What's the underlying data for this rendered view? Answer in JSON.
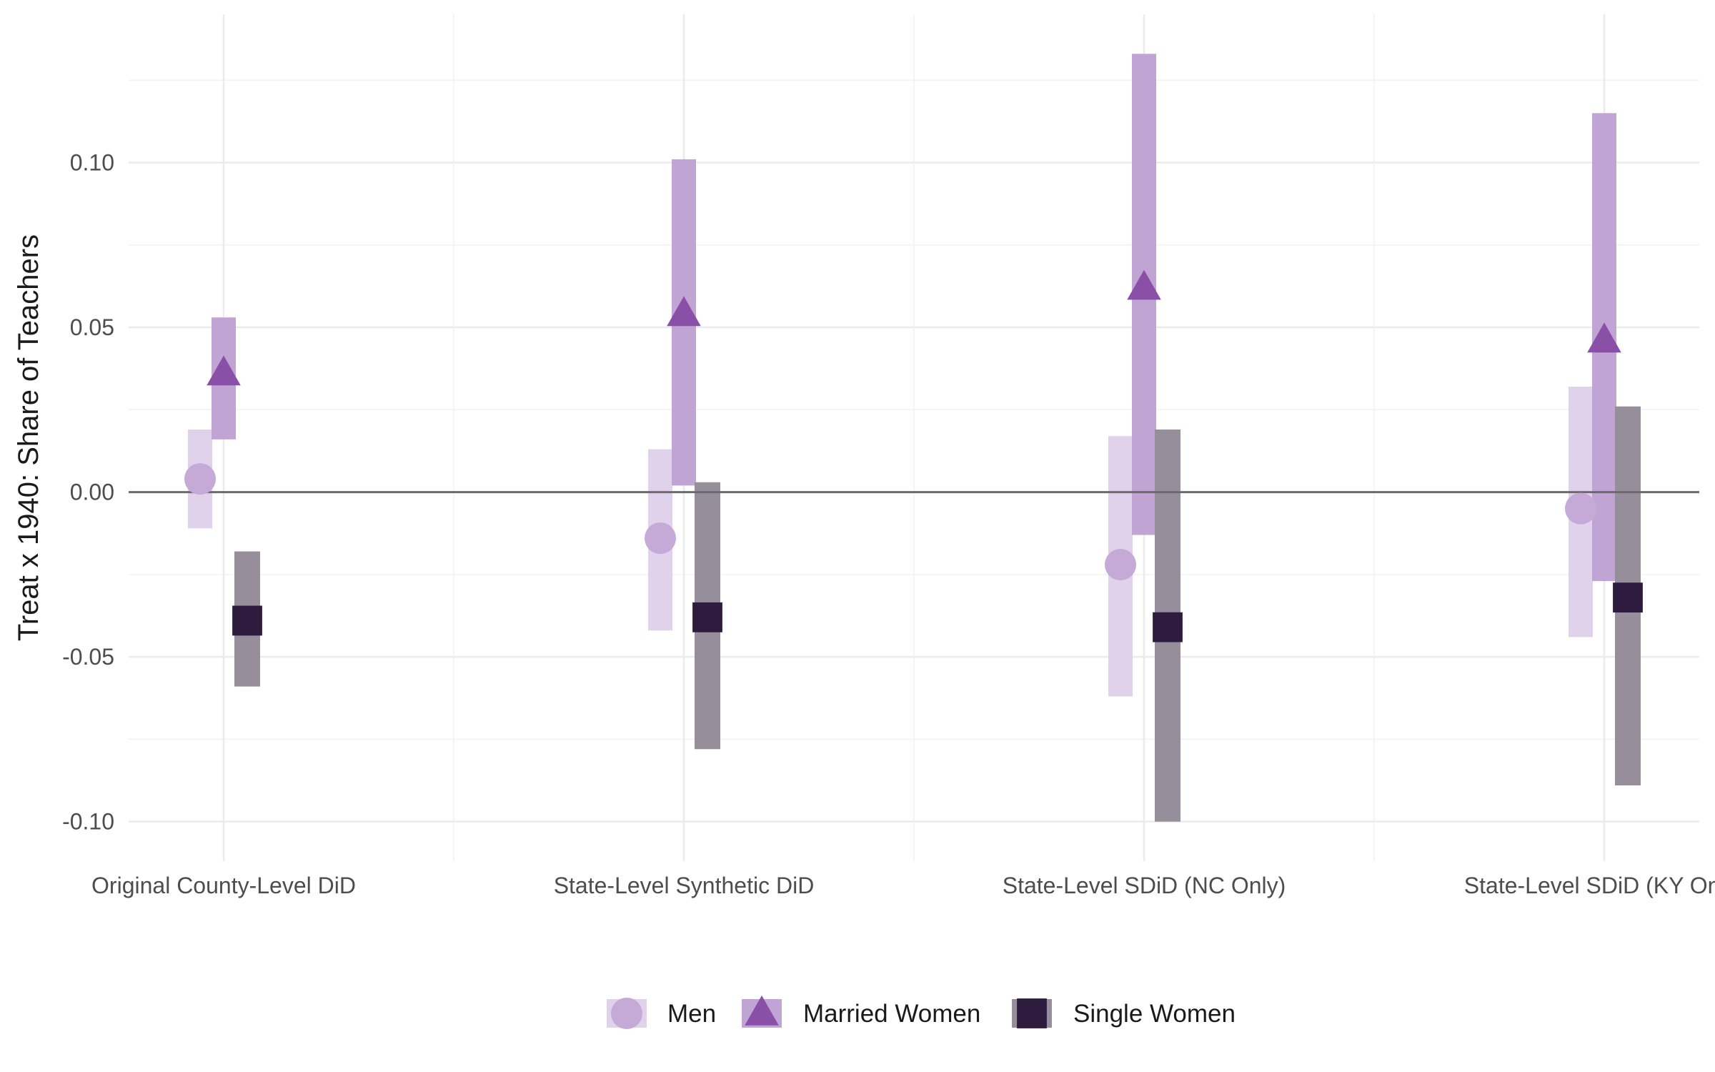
{
  "chart_data": {
    "type": "scatter",
    "subtype": "point-range",
    "ylabel": "Treat x 1940: Share of Teachers",
    "xlabel": "",
    "ylim": [
      -0.112,
      0.145
    ],
    "yticks": [
      -0.1,
      -0.05,
      0.0,
      0.05,
      0.1
    ],
    "ytick_labels": [
      "-0.10",
      "-0.05",
      "0.00",
      "0.05",
      "0.10"
    ],
    "hline": 0,
    "grid": true,
    "legend_position": "bottom",
    "categories": [
      "Original County-Level DiD",
      "State-Level Synthetic DiD",
      "State-Level SDiD (NC Only)",
      "State-Level SDiD (KY Only)"
    ],
    "series": [
      {
        "name": "Men",
        "shape": "circle",
        "color": "#c5aad8",
        "interval_color": "#e1d2ec",
        "estimates": [
          0.004,
          -0.014,
          -0.022,
          -0.005
        ],
        "lower": [
          -0.011,
          -0.042,
          -0.062,
          -0.044
        ],
        "upper": [
          0.019,
          0.013,
          0.017,
          0.032
        ]
      },
      {
        "name": "Married Women",
        "shape": "triangle",
        "color": "#8a4fa6",
        "interval_color": "#c0a4d4",
        "estimates": [
          0.036,
          0.054,
          0.062,
          0.046
        ],
        "lower": [
          0.016,
          0.002,
          -0.013,
          -0.027
        ],
        "upper": [
          0.053,
          0.101,
          0.133,
          0.115
        ]
      },
      {
        "name": "Single Women",
        "shape": "square",
        "color": "#2e1c3e",
        "interval_color": "#978e9c",
        "estimates": [
          -0.039,
          -0.038,
          -0.041,
          -0.032
        ],
        "lower": [
          -0.059,
          -0.078,
          -0.1,
          -0.089
        ],
        "upper": [
          -0.018,
          0.003,
          0.019,
          0.026
        ]
      }
    ]
  }
}
